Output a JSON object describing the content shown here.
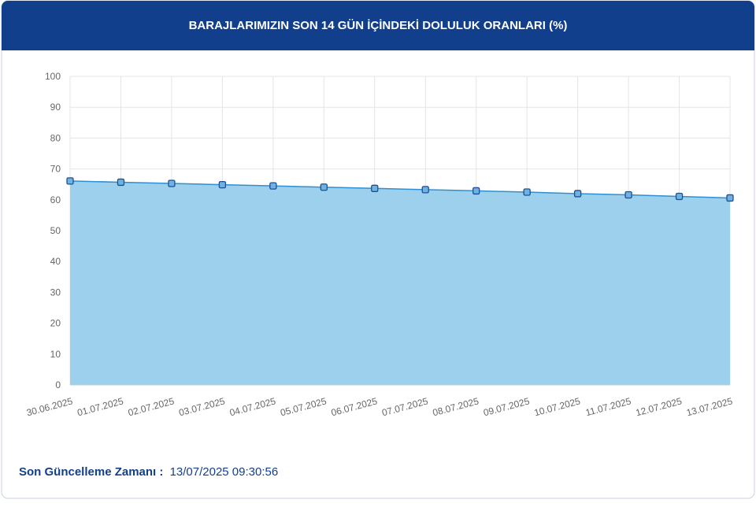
{
  "chart_data": {
    "type": "area",
    "title": "BARAJLARIMIZIN SON 14 GÜN İÇİNDEKİ DOLULUK ORANLARI (%)",
    "categories": [
      "30.06.2025",
      "01.07.2025",
      "02.07.2025",
      "03.07.2025",
      "04.07.2025",
      "05.07.2025",
      "06.07.2025",
      "07.07.2025",
      "08.07.2025",
      "09.07.2025",
      "10.07.2025",
      "11.07.2025",
      "12.07.2025",
      "13.07.2025"
    ],
    "values": [
      66.1,
      65.7,
      65.3,
      64.9,
      64.5,
      64.1,
      63.7,
      63.3,
      62.9,
      62.5,
      62.0,
      61.6,
      61.1,
      60.6
    ],
    "color": "#2f8fd0",
    "fill_color": "#9dd0ec",
    "ylim": [
      0,
      100
    ],
    "yticks": [
      0,
      10,
      20,
      30,
      40,
      50,
      60,
      70,
      80,
      90,
      100
    ],
    "grid": true
  },
  "footer": {
    "label": "Son Güncelleme Zamanı :",
    "value": "13/07/2025 09:30:56"
  }
}
